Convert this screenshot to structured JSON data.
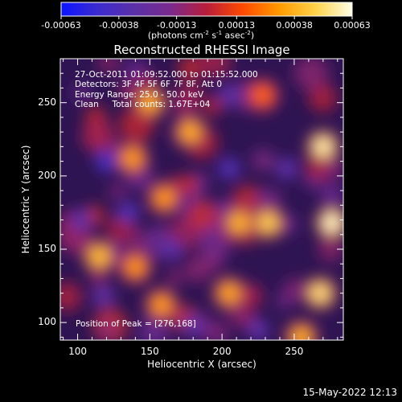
{
  "colorbar": {
    "ticks": [
      "-0.00063",
      "-0.00038",
      "-0.00013",
      "0.00013",
      "0.00038",
      "0.00063"
    ],
    "tick_values": [
      -0.00063,
      -0.00038,
      -0.00013,
      0.00013,
      0.00038,
      0.00063
    ],
    "range": [
      -0.00063,
      0.00063
    ],
    "units_prefix": "(photons cm",
    "units_sup1": "-2",
    "units_mid": " s",
    "units_sup2": "-1",
    "units_suffix": " asec",
    "units_sup3": "-2",
    "units_close": ")",
    "colors": [
      "#0a14ff",
      "#3c2bd0",
      "#5a30a8",
      "#7a2a8e",
      "#b81e3a",
      "#ff4a00",
      "#ff9a00",
      "#ffd24a",
      "#ffffe8"
    ]
  },
  "footer": {
    "timestamp": "15-May-2022 12:13"
  },
  "chart_data": {
    "type": "heatmap",
    "title": "Reconstructed RHESSI Image",
    "xlabel": "Heliocentric X (arcsec)",
    "ylabel": "Heliocentric Y (arcsec)",
    "xlim": [
      88,
      284
    ],
    "ylim": [
      88,
      280
    ],
    "xticks": [
      100,
      150,
      200,
      250
    ],
    "yticks": [
      100,
      150,
      200,
      250
    ],
    "colorscale_range": [
      -0.00063,
      0.00063
    ],
    "info_lines": [
      "27-Oct-2011 01:09:52.000 to 01:15:52.000",
      "Detectors: 3F 4F 5F 6F 7F 8F, Att 0",
      "Energy Range: 25.0 - 50.0 keV",
      "Clean     Total counts: 1.67E+04"
    ],
    "peak_label": "Position of Peak = [276,168]",
    "peak_position": [
      276,
      168
    ],
    "bright_regions": [
      {
        "x": 270,
        "y": 220,
        "value": 0.0006
      },
      {
        "x": 276,
        "y": 168,
        "value": 0.00063
      },
      {
        "x": 268,
        "y": 120,
        "value": 0.00055
      },
      {
        "x": 232,
        "y": 168,
        "value": 0.0005
      },
      {
        "x": 212,
        "y": 168,
        "value": 0.00042
      },
      {
        "x": 150,
        "y": 250,
        "value": 0.0004
      },
      {
        "x": 178,
        "y": 230,
        "value": 0.0004
      },
      {
        "x": 138,
        "y": 212,
        "value": 0.00035
      },
      {
        "x": 160,
        "y": 185,
        "value": 0.00034
      },
      {
        "x": 115,
        "y": 145,
        "value": 0.00045
      },
      {
        "x": 140,
        "y": 138,
        "value": 0.00033
      },
      {
        "x": 158,
        "y": 112,
        "value": 0.00035
      },
      {
        "x": 205,
        "y": 120,
        "value": 0.00038
      },
      {
        "x": 255,
        "y": 90,
        "value": 0.0004
      },
      {
        "x": 228,
        "y": 255,
        "value": 0.00022
      }
    ],
    "dim_regions": [
      {
        "x": 120,
        "y": 210,
        "value": -0.0004
      },
      {
        "x": 135,
        "y": 175,
        "value": -0.00035
      },
      {
        "x": 102,
        "y": 170,
        "value": -0.0003
      },
      {
        "x": 205,
        "y": 205,
        "value": -0.00035
      },
      {
        "x": 245,
        "y": 205,
        "value": -0.0003
      },
      {
        "x": 205,
        "y": 255,
        "value": -0.0003
      },
      {
        "x": 165,
        "y": 150,
        "value": -0.0003
      },
      {
        "x": 180,
        "y": 98,
        "value": -0.0003
      },
      {
        "x": 225,
        "y": 95,
        "value": -0.0003
      },
      {
        "x": 118,
        "y": 118,
        "value": -0.00028
      }
    ]
  }
}
